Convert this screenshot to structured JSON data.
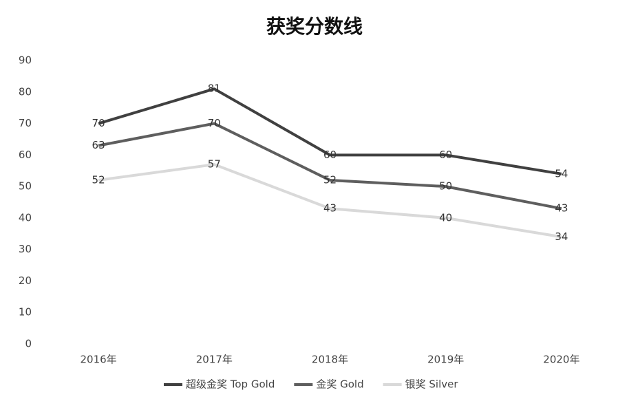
{
  "chart_data": {
    "type": "line",
    "title": "获奖分数线",
    "categories": [
      "2016年",
      "2017年",
      "2018年",
      "2019年",
      "2020年"
    ],
    "series": [
      {
        "name": "超级金奖 Top Gold",
        "color": "#404040",
        "values": [
          70,
          81,
          60,
          60,
          54
        ]
      },
      {
        "name": "金奖 Gold",
        "color": "#5e5e5e",
        "values": [
          63,
          70,
          52,
          50,
          43
        ]
      },
      {
        "name": "银奖 Silver",
        "color": "#d9d9d9",
        "values": [
          52,
          57,
          43,
          40,
          34
        ]
      }
    ],
    "ylim": [
      0,
      90
    ],
    "yticks": [
      0,
      10,
      20,
      30,
      40,
      50,
      60,
      70,
      80,
      90
    ],
    "grid": false,
    "legend": "bottom"
  }
}
